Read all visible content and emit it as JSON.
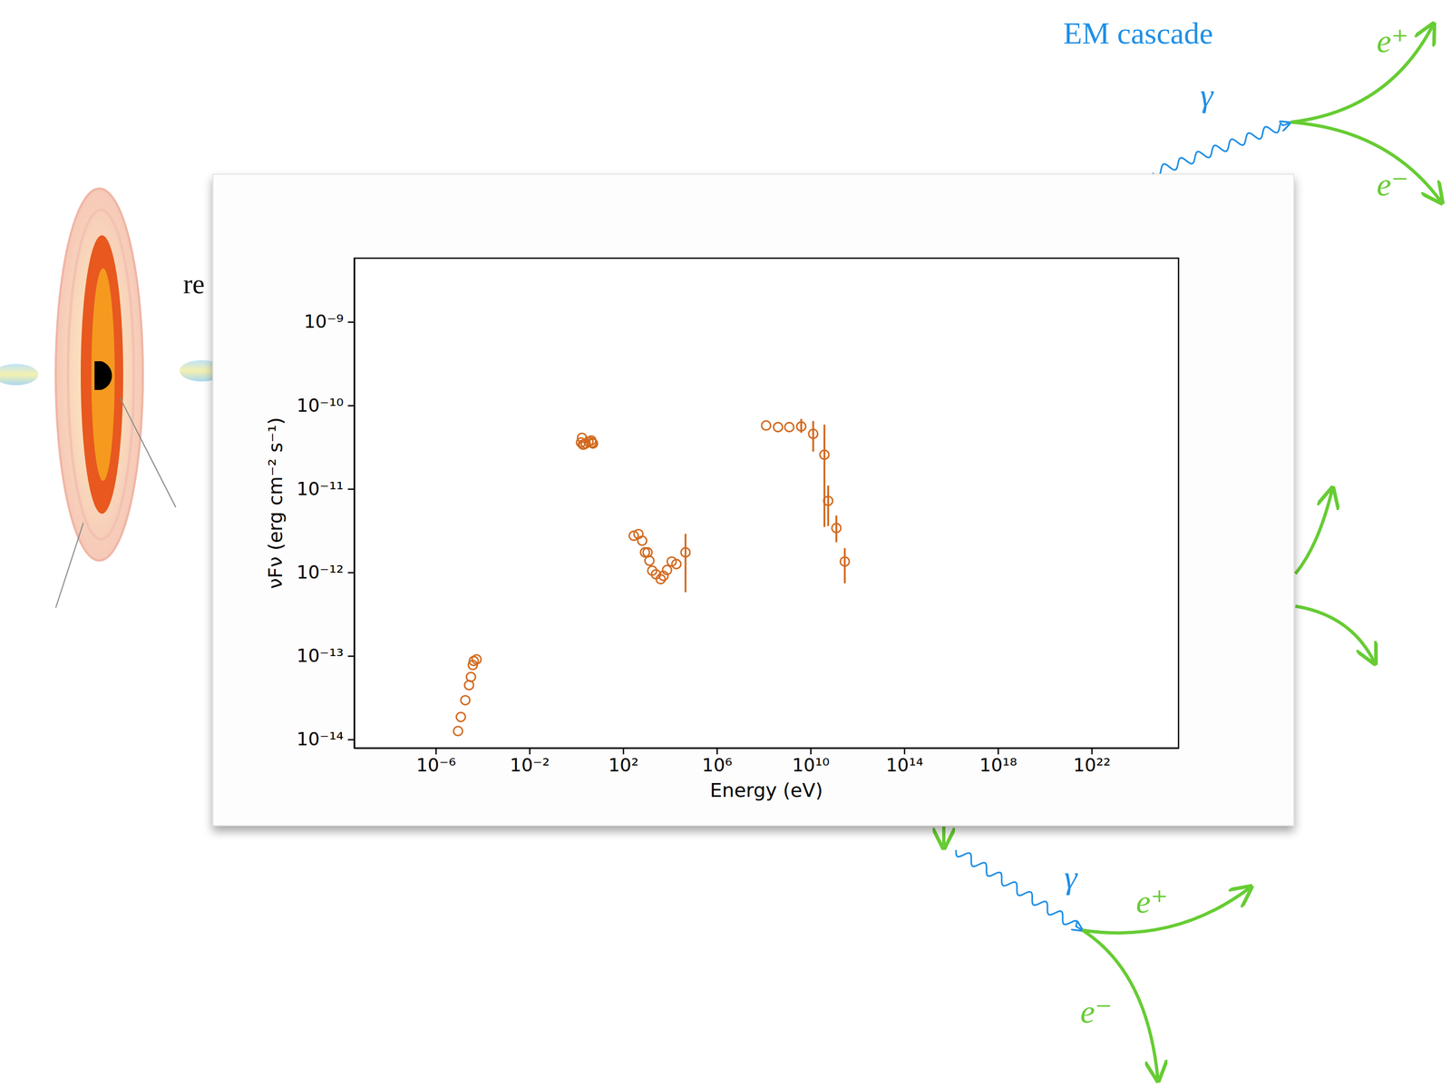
{
  "chart_data": {
    "type": "scatter",
    "x_label": "Energy (eV)",
    "y_label": "νFν (erg cm⁻² s⁻¹)",
    "log": true,
    "grid": false,
    "color": "#d2691e",
    "marker": "open-circle",
    "xlim": [
      3.3e-10,
      5.1e+25
    ],
    "ylim": [
      7.9e-15,
      5.8e-09
    ],
    "xticks": [
      {
        "value": 1e-06,
        "label": "10⁻⁶"
      },
      {
        "value": 0.01,
        "label": "10⁻²"
      },
      {
        "value": 100.0,
        "label": "10²"
      },
      {
        "value": 1000000.0,
        "label": "10⁶"
      },
      {
        "value": 10000000000.0,
        "label": "10¹⁰"
      },
      {
        "value": 100000000000000.0,
        "label": "10¹⁴"
      },
      {
        "value": 1e+18,
        "label": "10¹⁸"
      },
      {
        "value": 1e+22,
        "label": "10²²"
      }
    ],
    "yticks": [
      {
        "value": 1e-14,
        "label": "10⁻¹⁴"
      },
      {
        "value": 1e-13,
        "label": "10⁻¹³"
      },
      {
        "value": 1e-12,
        "label": "10⁻¹²"
      },
      {
        "value": 1e-11,
        "label": "10⁻¹¹"
      },
      {
        "value": 1e-10,
        "label": "10⁻¹⁰"
      },
      {
        "value": 1e-09,
        "label": "10⁻⁹"
      }
    ],
    "x": [
      8.9e-06,
      1.17e-05,
      1.82e-05,
      2.63e-05,
      3.16e-05,
      3.8e-05,
      4.17e-05,
      5.5e-05,
      1.58,
      1.74,
      1.9,
      2.09,
      2.51,
      3.31,
      4.37,
      4.68,
      5.13,
      282,
      447,
      646,
      851,
      1096,
      1318,
      1738,
      2512,
      3981,
      5248,
      7413,
      11750,
      18620,
      45700,
      126000000.0,
      407000000.0,
      1230000000.0,
      3980000000.0,
      12900000000.0,
      38900000000.0,
      56200000000.0,
      126000000000.0,
      288000000000.0
    ],
    "values": [
      1.26e-14,
      1.86e-14,
      2.95e-14,
      4.47e-14,
      5.6e-14,
      7.8e-14,
      8.7e-14,
      9.1e-14,
      3.6e-11,
      4.1e-11,
      3.4e-11,
      3.4e-11,
      3.5e-11,
      3.7e-11,
      3.8e-11,
      3.6e-11,
      3.5e-11,
      2.75e-12,
      2.88e-12,
      2.4e-12,
      1.74e-12,
      1.74e-12,
      1.38e-12,
      1.05e-12,
      9.5e-13,
      8.3e-13,
      9.1e-13,
      1.07e-12,
      1.35e-12,
      1.26e-12,
      1.74e-12,
      5.75e-11,
      5.5e-11,
      5.5e-11,
      5.6e-11,
      4.57e-11,
      2.57e-11,
      7.2e-12,
      3.4e-12,
      1.35e-12
    ],
    "y_low": [
      null,
      null,
      null,
      null,
      null,
      null,
      null,
      null,
      null,
      null,
      null,
      null,
      null,
      null,
      null,
      null,
      null,
      null,
      null,
      null,
      null,
      null,
      null,
      null,
      null,
      null,
      null,
      null,
      null,
      null,
      5.8e-13,
      null,
      null,
      null,
      4.7e-11,
      2.8e-11,
      3.5e-12,
      3.6e-12,
      2.3e-12,
      7.4e-13
    ],
    "y_high": [
      null,
      null,
      null,
      null,
      null,
      null,
      null,
      null,
      null,
      null,
      null,
      null,
      null,
      null,
      null,
      null,
      null,
      null,
      null,
      null,
      null,
      null,
      null,
      null,
      null,
      null,
      null,
      null,
      null,
      null,
      2.9e-12,
      null,
      null,
      null,
      6.9e-11,
      6.5e-11,
      5.9e-11,
      1.1e-11,
      4.8e-12,
      1.95e-12
    ]
  },
  "diagram": {
    "labels": [
      "EM cascade",
      "γ",
      "e⁺",
      "e⁻",
      "re",
      "γ",
      "e⁺",
      "e⁻"
    ]
  }
}
